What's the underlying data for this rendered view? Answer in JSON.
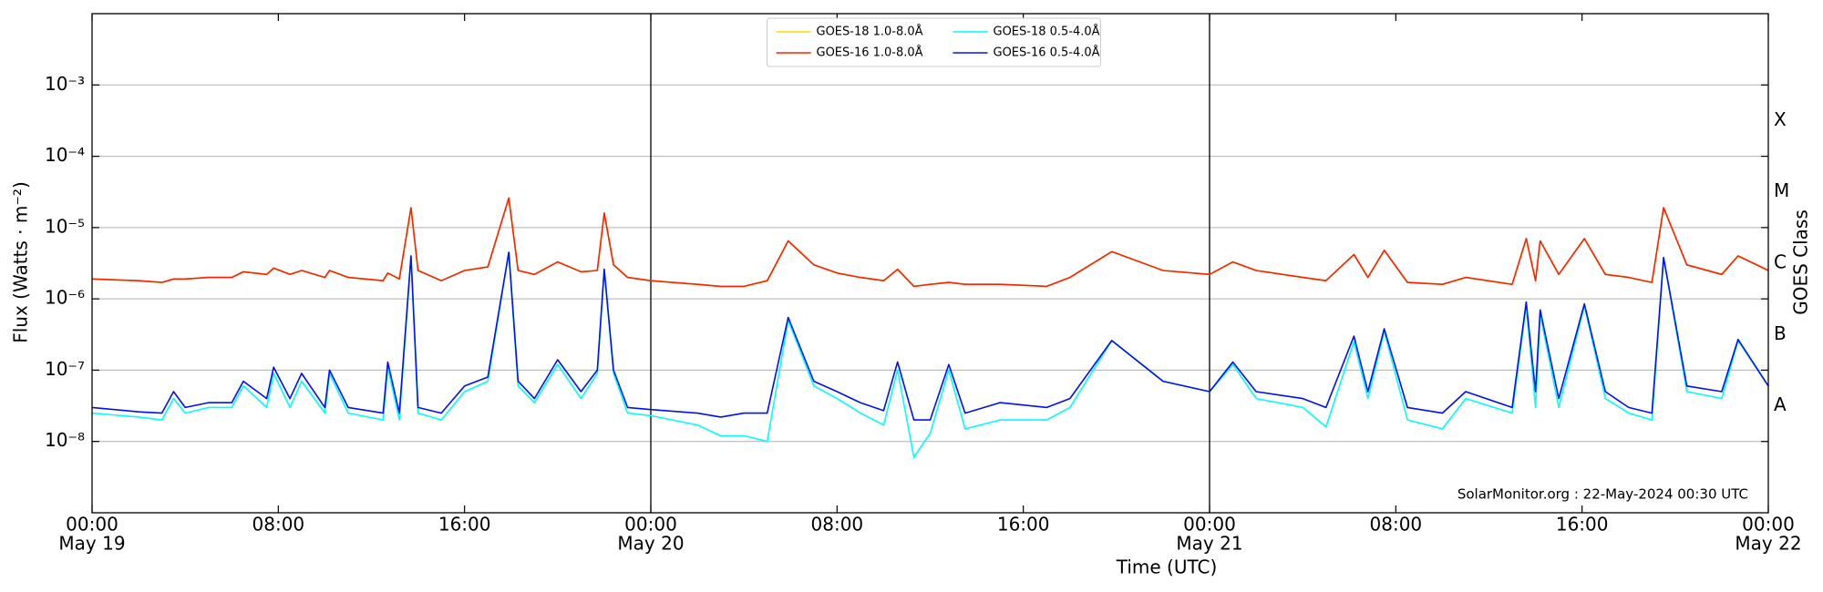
{
  "chart_data": {
    "type": "line",
    "x": [
      "May 19 00:00",
      "May 19 02:00",
      "May 19 03:00",
      "May 19 03:30",
      "May 19 04:00",
      "May 19 05:00",
      "May 19 06:00",
      "May 19 06:30",
      "May 19 07:30",
      "May 19 07:48",
      "May 19 08:30",
      "May 19 09:00",
      "May 19 10:00",
      "May 19 10:12",
      "May 19 11:00",
      "May 19 12:30",
      "May 19 12:42",
      "May 19 13:12",
      "May 19 13:42",
      "May 19 14:00",
      "May 19 15:00",
      "May 19 16:00",
      "May 19 17:00",
      "May 19 17:54",
      "May 19 18:18",
      "May 19 19:00",
      "May 19 20:00",
      "May 19 21:00",
      "May 19 21:42",
      "May 19 22:00",
      "May 19 22:24",
      "May 19 23:00",
      "May 20 00:00",
      "May 20 02:00",
      "May 20 03:00",
      "May 20 04:00",
      "May 20 05:00",
      "May 20 05:54",
      "May 20 07:00",
      "May 20 08:00",
      "May 20 09:00",
      "May 20 10:00",
      "May 20 10:36",
      "May 20 11:18",
      "May 20 12:00",
      "May 20 12:48",
      "May 20 13:30",
      "May 20 15:00",
      "May 20 17:00",
      "May 20 18:00",
      "May 20 19:48",
      "May 20 22:00",
      "May 21 00:00",
      "May 21 01:00",
      "May 21 02:00",
      "May 21 04:00",
      "May 21 05:00",
      "May 21 06:12",
      "May 21 06:48",
      "May 21 07:30",
      "May 21 08:30",
      "May 21 10:00",
      "May 21 11:00",
      "May 21 13:00",
      "May 21 13:36",
      "May 21 14:00",
      "May 21 14:12",
      "May 21 15:00",
      "May 21 16:06",
      "May 21 17:00",
      "May 21 18:00",
      "May 21 19:00",
      "May 21 19:30",
      "May 21 20:30",
      "May 21 22:00",
      "May 21 22:42",
      "May 22 00:00"
    ],
    "series": [
      {
        "name": "GOES-18 1.0-8.0Å",
        "color": "#ffd700",
        "values": [
          1.9e-06,
          1.8e-06,
          1.7e-06,
          1.9e-06,
          1.9e-06,
          2e-06,
          2e-06,
          2.4e-06,
          2.2e-06,
          2.7e-06,
          2.2e-06,
          2.5e-06,
          2e-06,
          2.5e-06,
          2e-06,
          1.8e-06,
          2.3e-06,
          1.9e-06,
          1.9e-05,
          2.5e-06,
          1.8e-06,
          2.5e-06,
          2.8e-06,
          2.6e-05,
          2.5e-06,
          2.2e-06,
          3.3e-06,
          2.4e-06,
          2.5e-06,
          1.6e-05,
          3e-06,
          2e-06,
          1.8e-06,
          1.6e-06,
          1.5e-06,
          1.5e-06,
          1.8e-06,
          6.5e-06,
          3e-06,
          2.3e-06,
          2e-06,
          1.8e-06,
          2.6e-06,
          1.5e-06,
          1.6e-06,
          1.7e-06,
          1.6e-06,
          1.6e-06,
          1.5e-06,
          2e-06,
          4.6e-06,
          2.5e-06,
          2.2e-06,
          3.3e-06,
          2.5e-06,
          2e-06,
          1.8e-06,
          4.2e-06,
          2e-06,
          4.8e-06,
          1.7e-06,
          1.6e-06,
          2e-06,
          1.6e-06,
          7e-06,
          1.8e-06,
          6.5e-06,
          2.2e-06,
          7e-06,
          2.2e-06,
          2e-06,
          1.7e-06,
          1.9e-05,
          3e-06,
          2.2e-06,
          4e-06,
          2.5e-06
        ]
      },
      {
        "name": "GOES-16 1.0-8.0Å",
        "color": "#ff2000",
        "values": [
          1.9e-06,
          1.8e-06,
          1.7e-06,
          1.9e-06,
          1.9e-06,
          2e-06,
          2e-06,
          2.4e-06,
          2.2e-06,
          2.7e-06,
          2.2e-06,
          2.5e-06,
          2e-06,
          2.5e-06,
          2e-06,
          1.8e-06,
          2.3e-06,
          1.9e-06,
          1.9e-05,
          2.5e-06,
          1.8e-06,
          2.5e-06,
          2.8e-06,
          2.6e-05,
          2.5e-06,
          2.2e-06,
          3.3e-06,
          2.4e-06,
          2.5e-06,
          1.6e-05,
          3e-06,
          2e-06,
          1.8e-06,
          1.6e-06,
          1.5e-06,
          1.5e-06,
          1.8e-06,
          6.5e-06,
          3e-06,
          2.3e-06,
          2e-06,
          1.8e-06,
          2.6e-06,
          1.5e-06,
          1.6e-06,
          1.7e-06,
          1.6e-06,
          1.6e-06,
          1.5e-06,
          2e-06,
          4.6e-06,
          2.5e-06,
          2.2e-06,
          3.3e-06,
          2.5e-06,
          2e-06,
          1.8e-06,
          4.2e-06,
          2e-06,
          4.8e-06,
          1.7e-06,
          1.6e-06,
          2e-06,
          1.6e-06,
          7e-06,
          1.8e-06,
          6.5e-06,
          2.2e-06,
          7e-06,
          2.2e-06,
          2e-06,
          1.7e-06,
          1.9e-05,
          3e-06,
          2.2e-06,
          4e-06,
          2.5e-06
        ]
      },
      {
        "name": "GOES-18 0.5-4.0Å",
        "color": "#00ffff",
        "values": [
          2.5e-08,
          2.2e-08,
          2e-08,
          4e-08,
          2.5e-08,
          3e-08,
          3e-08,
          6e-08,
          3e-08,
          9e-08,
          3e-08,
          7e-08,
          2.5e-08,
          9e-08,
          2.5e-08,
          2e-08,
          1.1e-07,
          2e-08,
          4e-06,
          2.5e-08,
          2e-08,
          5e-08,
          7e-08,
          4.5e-06,
          6e-08,
          3.5e-08,
          1.2e-07,
          4e-08,
          9e-08,
          2.6e-06,
          9e-08,
          2.5e-08,
          2.3e-08,
          1.7e-08,
          1.2e-08,
          1.2e-08,
          1e-08,
          5e-07,
          6e-08,
          4e-08,
          2.5e-08,
          1.7e-08,
          1e-07,
          6e-09,
          1.3e-08,
          1e-07,
          1.5e-08,
          2e-08,
          2e-08,
          3e-08,
          2.6e-07,
          7e-08,
          5e-08,
          1.2e-07,
          4e-08,
          3e-08,
          1.6e-08,
          2.5e-07,
          4e-08,
          3.5e-07,
          2e-08,
          1.5e-08,
          4e-08,
          2.5e-08,
          8e-07,
          3e-08,
          6e-07,
          3e-08,
          8e-07,
          4e-08,
          2.5e-08,
          2e-08,
          3.8e-06,
          5e-08,
          4e-08,
          2.6e-07,
          6e-08
        ]
      },
      {
        "name": "GOES-16 0.5-4.0Å",
        "color": "#0010ff",
        "values": [
          3e-08,
          2.6e-08,
          2.5e-08,
          5e-08,
          3e-08,
          3.5e-08,
          3.5e-08,
          7e-08,
          4e-08,
          1.1e-07,
          4e-08,
          9e-08,
          3e-08,
          1e-07,
          3e-08,
          2.5e-08,
          1.3e-07,
          2.5e-08,
          4e-06,
          3e-08,
          2.5e-08,
          6e-08,
          8e-08,
          4.5e-06,
          7e-08,
          4e-08,
          1.4e-07,
          5e-08,
          1e-07,
          2.6e-06,
          1e-07,
          3e-08,
          2.8e-08,
          2.5e-08,
          2.2e-08,
          2.5e-08,
          2.5e-08,
          5.5e-07,
          7e-08,
          5e-08,
          3.5e-08,
          2.7e-08,
          1.3e-07,
          2e-08,
          2e-08,
          1.2e-07,
          2.5e-08,
          3.5e-08,
          3e-08,
          4e-08,
          2.6e-07,
          7e-08,
          5e-08,
          1.3e-07,
          5e-08,
          4e-08,
          3e-08,
          3e-07,
          5e-08,
          3.8e-07,
          3e-08,
          2.5e-08,
          5e-08,
          3e-08,
          9e-07,
          5e-08,
          7e-07,
          4e-08,
          8.5e-07,
          5e-08,
          3e-08,
          2.5e-08,
          3.8e-06,
          6e-08,
          5e-08,
          2.7e-07,
          6e-08
        ]
      }
    ],
    "xlim": [
      "May 19 00:00",
      "May 22 00:00"
    ],
    "xticks": [
      {
        "value": "May 19 00:00",
        "label": "00:00"
      },
      {
        "value": "May 19 08:00",
        "label": "08:00"
      },
      {
        "value": "May 19 16:00",
        "label": "16:00"
      },
      {
        "value": "May 20 00:00",
        "label": "00:00"
      },
      {
        "value": "May 20 08:00",
        "label": "08:00"
      },
      {
        "value": "May 20 16:00",
        "label": "16:00"
      },
      {
        "value": "May 21 00:00",
        "label": "00:00"
      },
      {
        "value": "May 21 08:00",
        "label": "08:00"
      },
      {
        "value": "May 21 16:00",
        "label": "16:00"
      },
      {
        "value": "May 22 00:00",
        "label": "00:00"
      }
    ],
    "x_date_labels": [
      {
        "value": "May 19 00:00",
        "label": "May 19"
      },
      {
        "value": "May 20 00:00",
        "label": "May 20"
      },
      {
        "value": "May 21 00:00",
        "label": "May 21"
      },
      {
        "value": "May 22 00:00",
        "label": "May 22"
      }
    ],
    "ylim": [
      1e-09,
      0.01
    ],
    "log_y": true,
    "yticks": [
      {
        "value": 1e-08,
        "label": "10⁻⁸"
      },
      {
        "value": 1e-07,
        "label": "10⁻⁷"
      },
      {
        "value": 1e-06,
        "label": "10⁻⁶"
      },
      {
        "value": 1e-05,
        "label": "10⁻⁵"
      },
      {
        "value": 0.0001,
        "label": "10⁻⁴"
      },
      {
        "value": 0.001,
        "label": "10⁻³"
      }
    ],
    "y2ticks": [
      {
        "value": 3.16e-08,
        "label": "A"
      },
      {
        "value": 3.16e-07,
        "label": "B"
      },
      {
        "value": 3.16e-06,
        "label": "C"
      },
      {
        "value": 3.16e-05,
        "label": "M"
      },
      {
        "value": 0.000316,
        "label": "X"
      }
    ],
    "grid": true,
    "legend": "upper center",
    "xlabel": "Time (UTC)",
    "ylabel": "Flux (Watts · m⁻²)",
    "y2label": "GOES Class",
    "annotation": "SolarMonitor.org : 22-May-2024 00:30 UTC"
  }
}
